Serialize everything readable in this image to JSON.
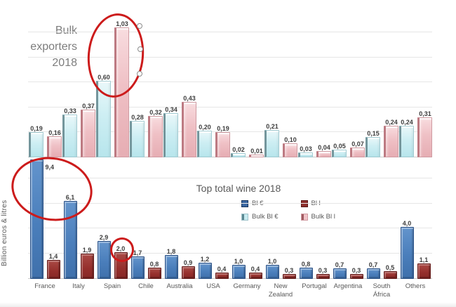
{
  "colors": {
    "annotation_red": "#cc1b1b",
    "bulk_eur_bar": "#cdeef3",
    "bulk_litres_bar": "#efc0c5",
    "eur_bar": "#4a7ebb",
    "litres_bar": "#952f2c",
    "title_gray": "#7d7d7d",
    "text_gray": "#595959"
  },
  "chart_data": [
    {
      "id": "bulk-exporters",
      "type": "bar",
      "title": "Bulk exporters 2018",
      "categories": [
        "France",
        "Italy",
        "Spain",
        "Chile",
        "Australia",
        "USA",
        "Germany",
        "New Zealand",
        "Portugal",
        "Argentina",
        "South África",
        "Others"
      ],
      "series": [
        {
          "name": "Bulk Bl €",
          "values": [
            0.19,
            0.33,
            0.6,
            0.28,
            0.34,
            0.2,
            0.02,
            0.21,
            0.03,
            0.05,
            0.15,
            0.24
          ]
        },
        {
          "name": "Bulk Bl l",
          "values": [
            0.16,
            0.37,
            1.03,
            0.32,
            0.43,
            0.19,
            0.01,
            0.1,
            0.04,
            0.07,
            0.24,
            0.31
          ]
        }
      ],
      "value_label_decimals": 2,
      "decimal_separator": ",",
      "ylim": [
        0,
        1.15
      ],
      "gridline_step": 0.2,
      "grid": true,
      "x_tick_labels_visible": false,
      "legend_position": "none"
    },
    {
      "id": "top-total-wine",
      "type": "bar",
      "title": "Top total wine 2018",
      "ylabel": "Billion euros & litres",
      "categories": [
        "France",
        "Italy",
        "Spain",
        "Chile",
        "Australia",
        "USA",
        "Germany",
        "New Zealand",
        "Portugal",
        "Argentina",
        "South África",
        "Others"
      ],
      "series": [
        {
          "name": "Bl €",
          "values": [
            9.4,
            6.1,
            2.9,
            1.7,
            1.8,
            1.2,
            1.0,
            1.0,
            0.8,
            0.7,
            0.7,
            4.0
          ]
        },
        {
          "name": "Bl l",
          "values": [
            1.4,
            1.9,
            2.0,
            0.8,
            0.9,
            0.4,
            0.4,
            0.3,
            0.3,
            0.3,
            0.5,
            1.1
          ]
        }
      ],
      "value_label_decimals": 1,
      "decimal_separator": ",",
      "ylim": [
        0,
        9.6
      ],
      "gridline_step": 2,
      "grid": true,
      "x_tick_labels_visible": true,
      "legend_position": "top-center",
      "legend": [
        {
          "label": "Bl €"
        },
        {
          "label": "Bl l"
        },
        {
          "label": "Bulk Bl €"
        },
        {
          "label": "Bulk Bl l"
        }
      ]
    }
  ],
  "annotations": {
    "pen_color": "#cc1b1b",
    "items": [
      {
        "name": "ellipse-spain-bulk-bars",
        "shape": "ellipse",
        "target": "Spain 0,60 / 1,03"
      },
      {
        "name": "ellipse-france-italy-totals",
        "shape": "ellipse",
        "target": "France 9,4 / Italy 6,1"
      },
      {
        "name": "circle-spain-litres-value",
        "shape": "circle",
        "target": "Spain 2,0"
      },
      {
        "name": "shape-selection-handles",
        "shape": "handles",
        "count": 3
      }
    ]
  }
}
